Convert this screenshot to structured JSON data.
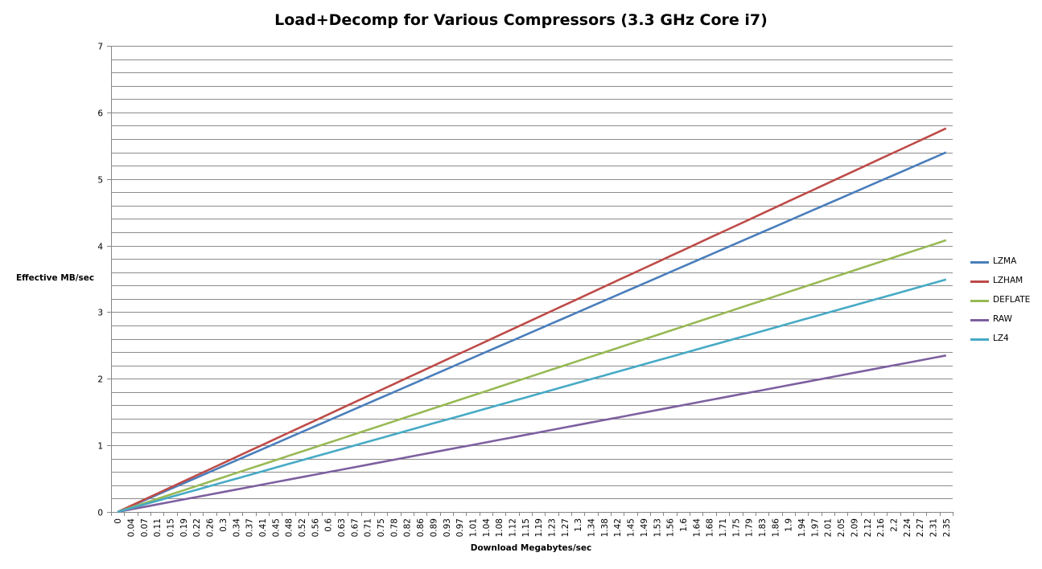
{
  "chart_data": {
    "type": "line",
    "title": "Load+Decomp for Various Compressors (3.3 GHz Core i7)",
    "xlabel": "Download Megabytes/sec",
    "ylabel": "Effective MB/sec",
    "ylim": [
      0,
      7
    ],
    "y_ticks": [
      "0",
      "1",
      "2",
      "3",
      "4",
      "5",
      "6",
      "7"
    ],
    "grid": true,
    "legend_position": "right",
    "categories": [
      "0",
      "0.04",
      "0.07",
      "0.11",
      "0.15",
      "0.19",
      "0.22",
      "0.26",
      "0.3",
      "0.34",
      "0.37",
      "0.41",
      "0.45",
      "0.48",
      "0.52",
      "0.56",
      "0.6",
      "0.63",
      "0.67",
      "0.71",
      "0.75",
      "0.78",
      "0.82",
      "0.86",
      "0.89",
      "0.93",
      "0.97",
      "1.01",
      "1.04",
      "1.08",
      "1.12",
      "1.15",
      "1.19",
      "1.23",
      "1.27",
      "1.3",
      "1.34",
      "1.38",
      "1.42",
      "1.45",
      "1.49",
      "1.53",
      "1.56",
      "1.6",
      "1.64",
      "1.68",
      "1.71",
      "1.75",
      "1.79",
      "1.83",
      "1.86",
      "1.9",
      "1.94",
      "1.97",
      "2.01",
      "2.05",
      "2.09",
      "2.12",
      "2.16",
      "2.2",
      "2.24",
      "2.27",
      "2.31",
      "2.35"
    ],
    "series": [
      {
        "name": "LZMA",
        "color": "#4a7ebb",
        "start": 0,
        "end": 5.4
      },
      {
        "name": "LZHAM",
        "color": "#be4b48",
        "start": 0,
        "end": 5.76
      },
      {
        "name": "DEFLATE",
        "color": "#98b954",
        "start": 0,
        "end": 4.08
      },
      {
        "name": "RAW",
        "color": "#7d60a0",
        "start": 0,
        "end": 2.35
      },
      {
        "name": "LZ4",
        "color": "#46aac5",
        "start": 0,
        "end": 3.49
      }
    ]
  }
}
